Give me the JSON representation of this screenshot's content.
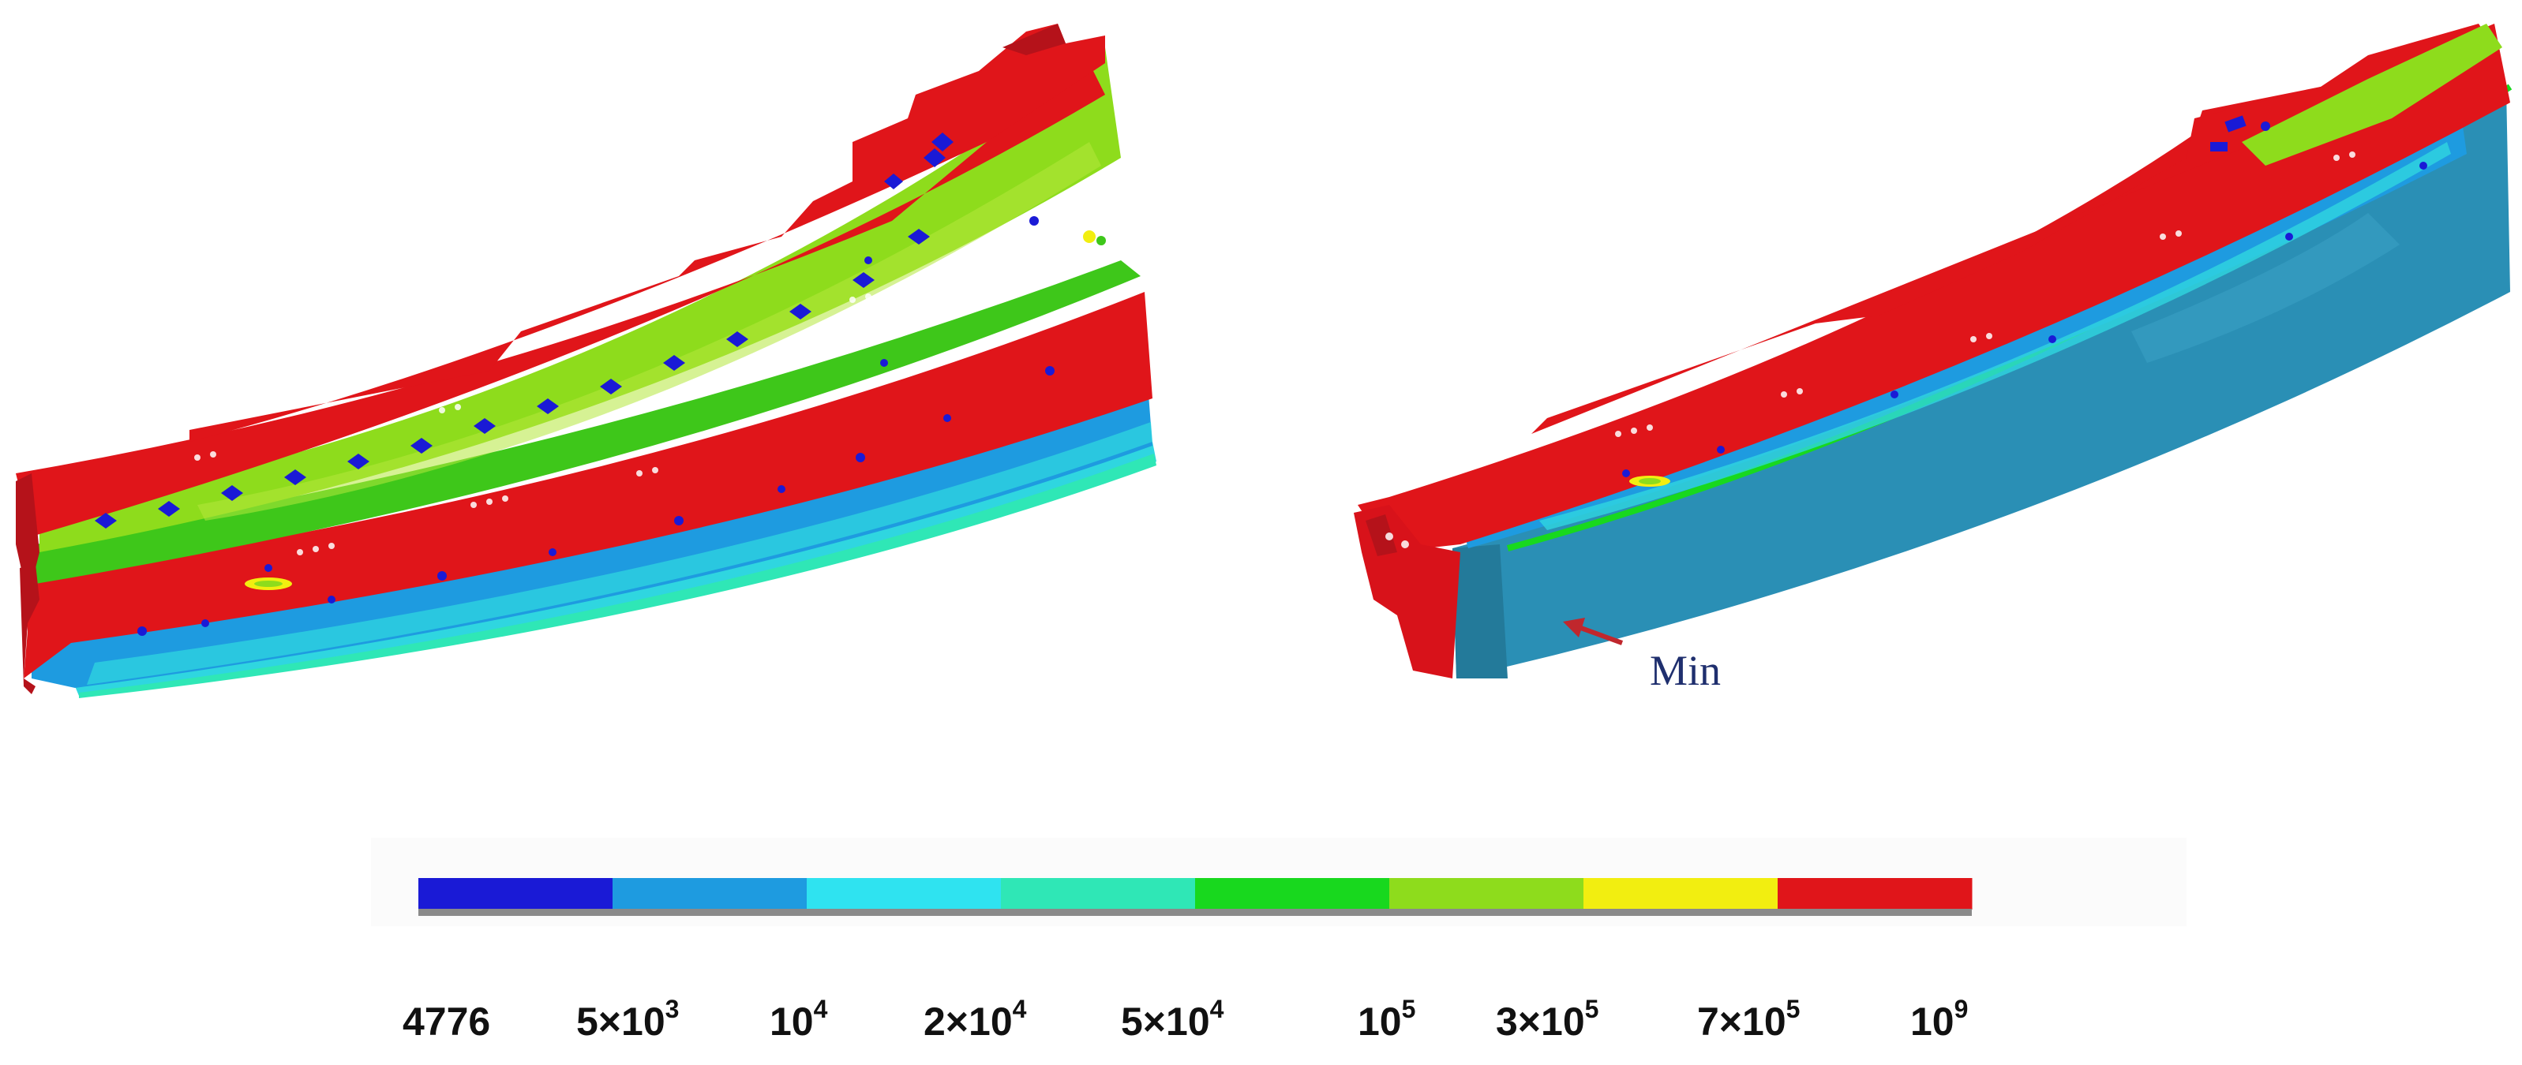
{
  "annotation": {
    "text": "Min",
    "color": "#1f2f6e",
    "arrow_color": "#c0272d"
  },
  "colorbar": {
    "bands": [
      {
        "color": "#1a1ad6"
      },
      {
        "color": "#1e9be0"
      },
      {
        "color": "#2fe3f0"
      },
      {
        "color": "#2fe7b6"
      },
      {
        "color": "#18d81e"
      },
      {
        "color": "#8edc1c"
      },
      {
        "color": "#f2ee10"
      },
      {
        "color": "#e0151a"
      }
    ],
    "ticks": [
      {
        "base": "4776",
        "exp": ""
      },
      {
        "base": "5×10",
        "exp": "3"
      },
      {
        "base": "10",
        "exp": "4"
      },
      {
        "base": "2×10",
        "exp": "4"
      },
      {
        "base": "5×10",
        "exp": "4"
      },
      {
        "base": "10",
        "exp": "5"
      },
      {
        "base": "3×10",
        "exp": "5"
      },
      {
        "base": "7×10",
        "exp": "5"
      },
      {
        "base": "10",
        "exp": "9"
      }
    ]
  },
  "palette": {
    "red": "#e0151a",
    "dark_red": "#b5121a",
    "yellow_green": "#8edc1c",
    "green": "#3ec71a",
    "blue": "#1a1ad6",
    "cyan": "#2fd6e0",
    "teal": "#2fe7b6",
    "steel_blue": "#2a8fb5",
    "dark_steel": "#237a9a",
    "light_blue": "#1e9be0"
  }
}
